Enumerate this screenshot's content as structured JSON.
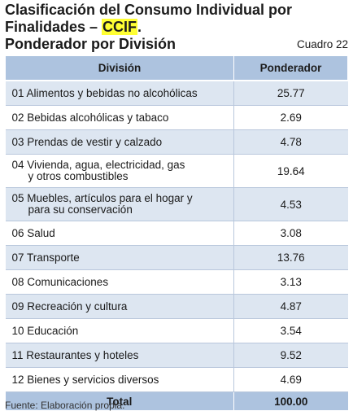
{
  "title": {
    "line1": "Clasificación del Consumo Individual por",
    "line2_prefix": "Finalidades – ",
    "line2_highlight": "CCIF",
    "line2_suffix": "."
  },
  "subtitle": "Ponderador por División",
  "cuadro": "Cuadro 22",
  "table": {
    "headers": [
      "División",
      "Ponderador"
    ],
    "rows": [
      {
        "division": "01 Alimentos y bebidas no alcohólicas",
        "cont": "",
        "value": "25.77"
      },
      {
        "division": "02 Bebidas alcohólicas y tabaco",
        "cont": "",
        "value": "2.69"
      },
      {
        "division": "03 Prendas de vestir y calzado",
        "cont": "",
        "value": "4.78"
      },
      {
        "division": "04 Vivienda, agua, electricidad, gas",
        "cont": "y otros combustibles",
        "value": "19.64"
      },
      {
        "division": "05 Muebles, artículos para el hogar y",
        "cont": "para su conservación",
        "value": "4.53"
      },
      {
        "division": "06 Salud",
        "cont": "",
        "value": "3.08"
      },
      {
        "division": "07 Transporte",
        "cont": "",
        "value": "13.76"
      },
      {
        "division": "08 Comunicaciones",
        "cont": "",
        "value": "3.13"
      },
      {
        "division": "09 Recreación y cultura",
        "cont": "",
        "value": "4.87"
      },
      {
        "division": "10 Educación",
        "cont": "",
        "value": "3.54"
      },
      {
        "division": "11 Restaurantes y hoteles",
        "cont": "",
        "value": "9.52"
      },
      {
        "division": "12 Bienes y servicios diversos",
        "cont": "",
        "value": "4.69"
      }
    ],
    "total": {
      "label": "Total",
      "value": "100.00"
    }
  },
  "footer": "Fuente: Elaboración propia."
}
